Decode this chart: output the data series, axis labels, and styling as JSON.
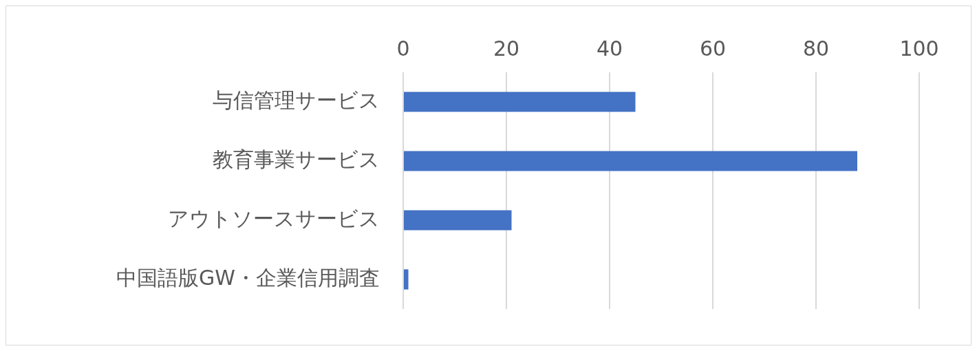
{
  "chart_data": {
    "type": "bar",
    "orientation": "horizontal",
    "categories": [
      "与信管理サービス",
      "教育事業サービス",
      "アウトソースサービス",
      "中国語版GW・企業信用調査"
    ],
    "values": [
      45,
      88,
      21,
      1
    ],
    "color": "#4472c4",
    "xlim": [
      0,
      100
    ],
    "xticks": [
      0,
      20,
      40,
      60,
      80,
      100
    ],
    "grid": "x",
    "legend": false
  }
}
